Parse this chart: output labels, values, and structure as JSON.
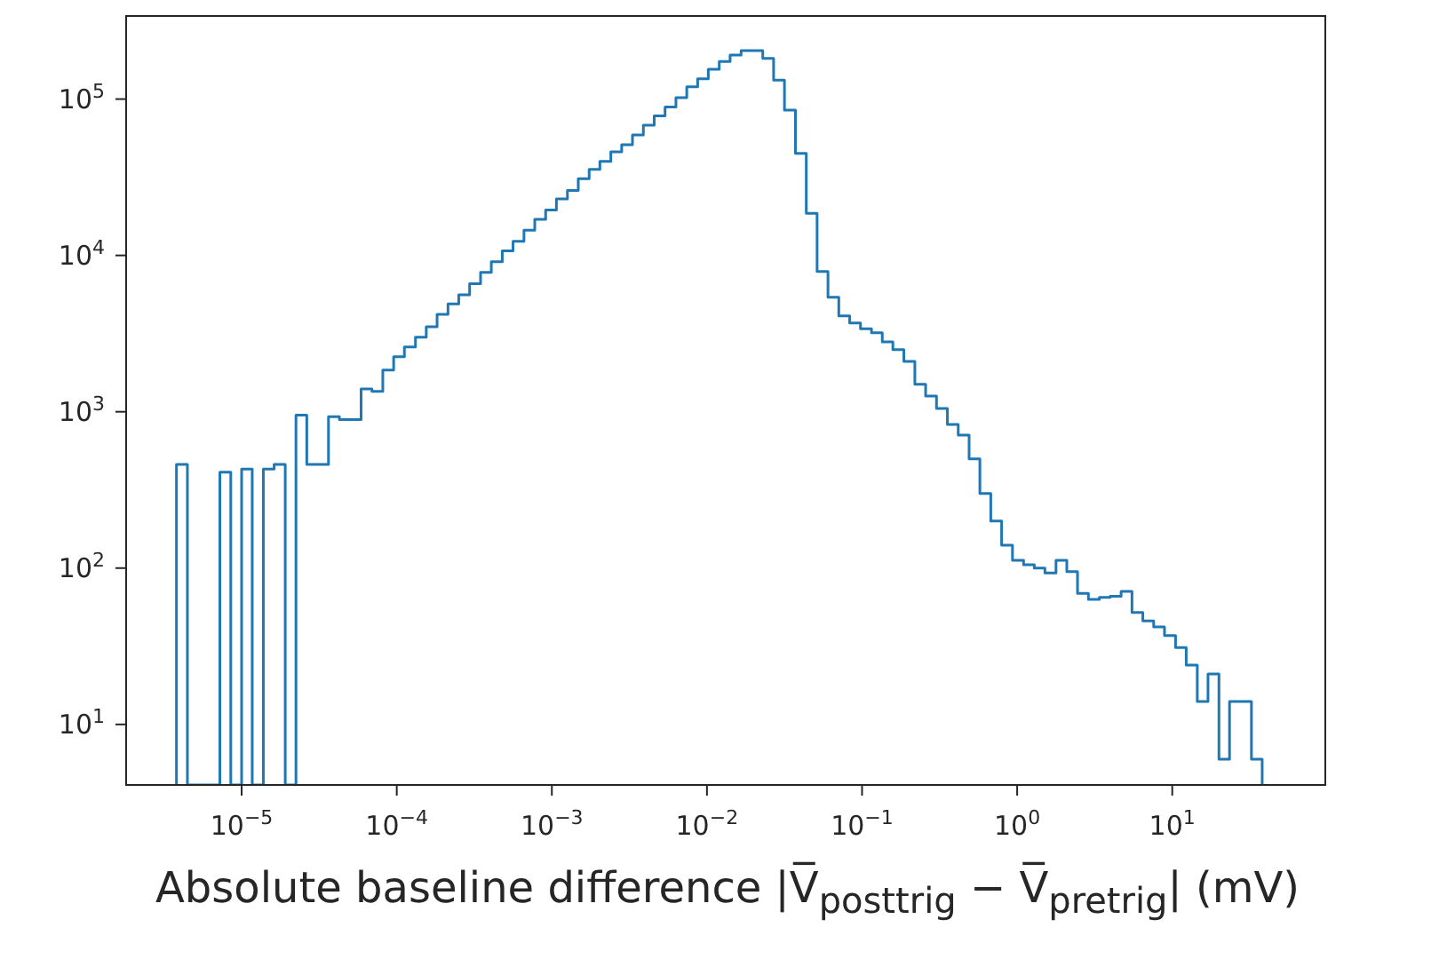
{
  "chart_data": {
    "type": "histogram",
    "xlabel": "Absolute baseline difference |V̅$_{posttrig}$ − V̅$_{pretrig}$| (mV)",
    "log": "xy",
    "color": "#1f77b4",
    "bins": [
      3.8e-06,
      4.47e-06,
      5.25e-06,
      6.17e-06,
      7.24e-06,
      8.51e-06,
      1e-05,
      1.17e-05,
      1.38e-05,
      1.62e-05,
      1.91e-05,
      2.24e-05,
      2.63e-05,
      3.09e-05,
      3.63e-05,
      4.27e-05,
      5.01e-05,
      5.89e-05,
      6.92e-05,
      8.13e-05,
      9.55e-05,
      0.000112,
      0.000132,
      0.000155,
      0.000182,
      0.000214,
      0.000251,
      0.000295,
      0.000347,
      0.000407,
      0.000479,
      0.000562,
      0.000661,
      0.000776,
      0.000912,
      0.00107,
      0.00126,
      0.00148,
      0.00174,
      0.00204,
      0.0024,
      0.00282,
      0.00331,
      0.00389,
      0.00457,
      0.00537,
      0.00631,
      0.00741,
      0.00871,
      0.0102,
      0.012,
      0.0141,
      0.0166,
      0.0195,
      0.0229,
      0.0269,
      0.0316,
      0.0372,
      0.0437,
      0.0513,
      0.0603,
      0.0708,
      0.0832,
      0.0977,
      0.115,
      0.135,
      0.158,
      0.186,
      0.219,
      0.257,
      0.302,
      0.355,
      0.417,
      0.49,
      0.575,
      0.676,
      0.794,
      0.933,
      1.1,
      1.29,
      1.51,
      1.78,
      2.09,
      2.45,
      2.88,
      3.39,
      3.98,
      4.68,
      5.5,
      6.46,
      7.59,
      8.91,
      10.5,
      12.3,
      14.5,
      17.0,
      20.0,
      23.4,
      27.5,
      32.4,
      38.0
    ],
    "values": [
      460,
      null,
      null,
      null,
      410,
      null,
      430,
      null,
      430,
      460,
      null,
      950,
      460,
      460,
      930,
      890,
      890,
      1400,
      1350,
      1850,
      2250,
      2600,
      3000,
      3500,
      4200,
      4900,
      5600,
      6600,
      7800,
      9100,
      10700,
      12300,
      14500,
      17000,
      19500,
      23000,
      26000,
      31000,
      35500,
      40000,
      46000,
      51000,
      59000,
      68000,
      78000,
      89000,
      102000,
      120000,
      135000,
      155000,
      174000,
      191000,
      204000,
      204000,
      182000,
      132000,
      85000,
      45000,
      18600,
      7900,
      5400,
      4100,
      3700,
      3400,
      3200,
      2800,
      2500,
      2100,
      1500,
      1260,
      1050,
      830,
      710,
      500,
      300,
      200,
      140,
      112,
      105,
      100,
      93,
      112,
      95,
      69,
      63,
      65,
      66,
      71,
      52,
      46,
      42,
      37,
      31,
      24,
      14,
      21,
      6,
      14,
      14,
      6
    ],
    "xlim": [
      1.8e-06,
      97
    ],
    "ylim": [
      4.1,
      340000
    ],
    "xticks": [
      {
        "value": 1e-05,
        "label": "10$^{−5}$"
      },
      {
        "value": 0.0001,
        "label": "10$^{−4}$"
      },
      {
        "value": 0.001,
        "label": "10$^{−3}$"
      },
      {
        "value": 0.01,
        "label": "10$^{−2}$"
      },
      {
        "value": 0.1,
        "label": "10$^{−1}$"
      },
      {
        "value": 1,
        "label": "10$^{0}$"
      },
      {
        "value": 10,
        "label": "10$^{1}$"
      }
    ],
    "yticks": [
      {
        "value": 10,
        "label": "10$^{1}$"
      },
      {
        "value": 100,
        "label": "10$^{2}$"
      },
      {
        "value": 1000,
        "label": "10$^{3}$"
      },
      {
        "value": 10000,
        "label": "10$^{4}$"
      },
      {
        "value": 100000,
        "label": "10$^{5}$"
      }
    ]
  }
}
